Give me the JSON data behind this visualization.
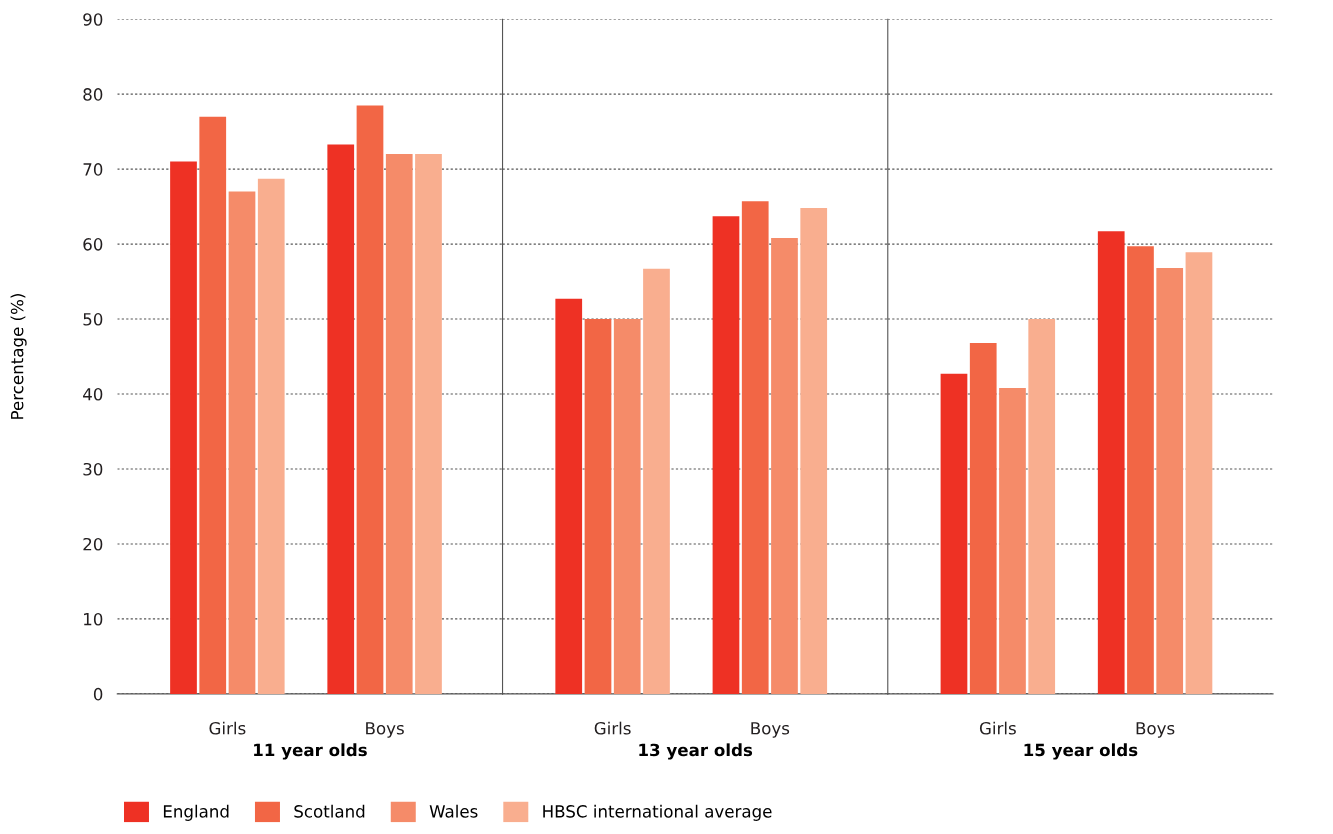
{
  "chart_data": [
    {
      "type": "bar",
      "xlabel": "11 year olds",
      "ylabel": "Percentage (%)",
      "categories": [
        "Girls",
        "Boys"
      ],
      "ylim": [
        0,
        90
      ],
      "yticks": [
        0,
        10,
        20,
        30,
        40,
        50,
        60,
        70,
        80,
        90
      ],
      "grid": "y",
      "legend": "bottom",
      "series": [
        {
          "name": "England",
          "color": "#ee3124",
          "values": [
            71,
            73.3
          ]
        },
        {
          "name": "Scotland",
          "color": "#f26645",
          "values": [
            77,
            78.5
          ]
        },
        {
          "name": "Wales",
          "color": "#f58b69",
          "values": [
            67,
            72
          ]
        },
        {
          "name": "HBSC international average",
          "color": "#f9ae8f",
          "values": [
            68.7,
            72
          ]
        }
      ]
    },
    {
      "type": "bar",
      "xlabel": "13 year olds",
      "categories": [
        "Girls",
        "Boys"
      ],
      "ylim": [
        0,
        90
      ],
      "yticks": [
        0,
        10,
        20,
        30,
        40,
        50,
        60,
        70,
        80,
        90
      ],
      "grid": "y",
      "tick_labels": "x",
      "series": [
        {
          "color": "#ee3124",
          "values": [
            52.7,
            63.7
          ]
        },
        {
          "color": "#f26645",
          "values": [
            50,
            65.7
          ]
        },
        {
          "color": "#f58b69",
          "values": [
            50,
            60.8
          ]
        },
        {
          "color": "#f9ae8f",
          "values": [
            56.7,
            64.8
          ]
        }
      ]
    },
    {
      "type": "bar",
      "xlabel": "15 year olds",
      "categories": [
        "Girls",
        "Boys"
      ],
      "ylim": [
        0,
        90
      ],
      "yticks": [
        0,
        10,
        20,
        30,
        40,
        50,
        60,
        70,
        80,
        90
      ],
      "grid": "y",
      "tick_labels": "x",
      "series": [
        {
          "color": "#ee3124",
          "values": [
            42.7,
            61.7
          ]
        },
        {
          "color": "#f26645",
          "values": [
            46.8,
            59.7
          ]
        },
        {
          "color": "#f58b69",
          "values": [
            40.8,
            56.8
          ]
        },
        {
          "color": "#f9ae8f",
          "values": [
            50,
            58.9
          ]
        }
      ]
    }
  ]
}
